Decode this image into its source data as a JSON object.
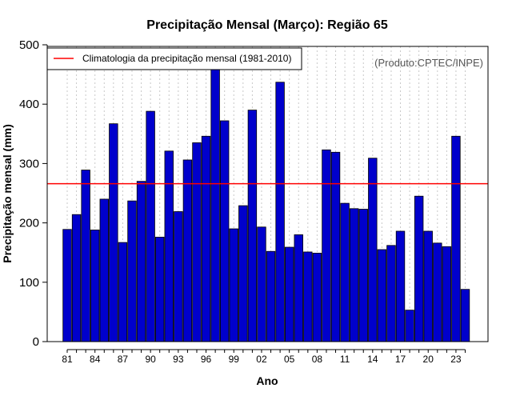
{
  "chart_data": {
    "type": "bar",
    "title": "Precipitação Mensal (Março): Região 65",
    "xlabel": "Ano",
    "ylabel": "Precipitação mensal (mm)",
    "ylim": [
      0,
      500
    ],
    "yticks": [
      0,
      100,
      200,
      300,
      400,
      500
    ],
    "categories": [
      "1981",
      "1982",
      "1983",
      "1984",
      "1985",
      "1986",
      "1987",
      "1988",
      "1989",
      "1990",
      "1991",
      "1992",
      "1993",
      "1994",
      "1995",
      "1996",
      "1997",
      "1998",
      "1999",
      "2000",
      "2001",
      "2002",
      "2003",
      "2004",
      "2005",
      "2006",
      "2007",
      "2008",
      "2009",
      "2010",
      "2011",
      "2012",
      "2013",
      "2014",
      "2015",
      "2016",
      "2017",
      "2018",
      "2019",
      "2020",
      "2021",
      "2022",
      "2023",
      "2024"
    ],
    "values": [
      189,
      214,
      289,
      188,
      240,
      367,
      167,
      237,
      270,
      388,
      176,
      321,
      219,
      306,
      335,
      346,
      468,
      372,
      190,
      229,
      390,
      193,
      152,
      437,
      159,
      180,
      151,
      149,
      323,
      319,
      233,
      224,
      223,
      309,
      155,
      162,
      186,
      53,
      245,
      186,
      166,
      160,
      346,
      88
    ],
    "xtick_labels": [
      {
        "index": 0,
        "label": "81"
      },
      {
        "index": 3,
        "label": "84"
      },
      {
        "index": 6,
        "label": "87"
      },
      {
        "index": 9,
        "label": "90"
      },
      {
        "index": 12,
        "label": "93"
      },
      {
        "index": 15,
        "label": "96"
      },
      {
        "index": 18,
        "label": "99"
      },
      {
        "index": 21,
        "label": "02"
      },
      {
        "index": 24,
        "label": "05"
      },
      {
        "index": 27,
        "label": "08"
      },
      {
        "index": 30,
        "label": "11"
      },
      {
        "index": 33,
        "label": "14"
      },
      {
        "index": 36,
        "label": "17"
      },
      {
        "index": 39,
        "label": "20"
      },
      {
        "index": 42,
        "label": "23"
      }
    ],
    "climatology": {
      "label": "Climatologia da precipitação mensal (1981-2010)",
      "value": 266
    },
    "credit": "(Produto:CPTEC/INPE)",
    "legend_position": "top-left",
    "grid": "vertical dotted",
    "colors": {
      "bar": "#0000cc",
      "bar_edge": "#000000",
      "climatology": "#ff0000",
      "grid": "#c8c8c8"
    }
  }
}
